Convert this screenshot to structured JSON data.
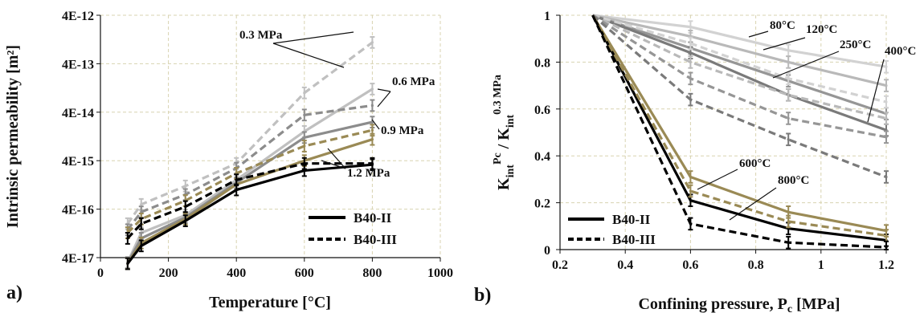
{
  "panels": [
    {
      "label": "a)",
      "xlabel": "Temperature [°C]",
      "ylabel": "Intrinsic permeability [m²]",
      "xticks": [
        "0",
        "200",
        "400",
        "600",
        "800",
        "1000"
      ],
      "yticks": [
        "4E-17",
        "4E-16",
        "4E-15",
        "4E-14",
        "4E-13",
        "4E-12"
      ],
      "annotations": [
        "0.3 MPa",
        "0.6 MPa",
        "0.9 MPa",
        "1.2 MPa"
      ],
      "legend": [
        "B40-II",
        "B40-III"
      ]
    },
    {
      "label": "b)",
      "xlabel": "Confining pressure, Pc [MPa]",
      "ylabel": "Kint^Pc / Kint^0.3 MPa",
      "xticks": [
        "0.2",
        "0.4",
        "0.6",
        "0.8",
        "1",
        "1.2"
      ],
      "yticks": [
        "0",
        "0.2",
        "0.4",
        "0.6",
        "0.8",
        "1"
      ],
      "annotations": [
        "80°C",
        "120°C",
        "250°C",
        "400°C",
        "600°C",
        "800°C"
      ],
      "legend": [
        "B40-II",
        "B40-III"
      ]
    }
  ],
  "chart_data": [
    {
      "type": "line",
      "title": "a)",
      "xlabel": "Temperature [°C]",
      "ylabel": "Intrinsic permeability [m²]",
      "xlim": [
        0,
        1000
      ],
      "ylim": [
        4e-17,
        4e-12
      ],
      "yscale": "log",
      "grid": true,
      "legend_position": "bottom-right",
      "colors": {
        "black": "#000000",
        "olive": "#9a8a55",
        "gray": "#8c8c8c",
        "lightgray": "#c0c0c0"
      },
      "series": [
        {
          "name": "B40-II 0.3 MPa",
          "style": "solid",
          "color": "#c0c0c0",
          "x": [
            80,
            120,
            250,
            400,
            600,
            800
          ],
          "y": [
            3.2e-17,
            1.3e-16,
            3e-16,
            1.6e-15,
            1.6e-14,
            1.2e-13
          ]
        },
        {
          "name": "B40-II 0.6 MPa",
          "style": "solid",
          "color": "#8c8c8c",
          "x": [
            80,
            120,
            250,
            400,
            600,
            800
          ],
          "y": [
            3.1e-17,
            1e-16,
            2.7e-16,
            1.4e-15,
            1.2e-14,
            2.5e-14
          ]
        },
        {
          "name": "B40-II 0.9 MPa",
          "style": "solid",
          "color": "#9a8a55",
          "x": [
            80,
            120,
            250,
            400,
            600,
            800
          ],
          "y": [
            3e-17,
            8e-17,
            2.5e-16,
            1.3e-15,
            4e-15,
            1.1e-14
          ]
        },
        {
          "name": "B40-II 1.2 MPa",
          "style": "solid",
          "color": "#000000",
          "x": [
            80,
            120,
            250,
            400,
            600,
            800
          ],
          "y": [
            3e-17,
            7e-17,
            2.3e-16,
            1e-15,
            2.5e-15,
            3.3e-15
          ]
        },
        {
          "name": "B40-III 0.3 MPa",
          "style": "dashed",
          "color": "#c0c0c0",
          "x": [
            80,
            120,
            250,
            400,
            600,
            800
          ],
          "y": [
            2e-16,
            5e-16,
            1.2e-15,
            3.5e-15,
            1e-13,
            1.1e-12
          ]
        },
        {
          "name": "B40-III 0.6 MPa",
          "style": "dashed",
          "color": "#8c8c8c",
          "x": [
            80,
            120,
            250,
            400,
            600,
            800
          ],
          "y": [
            1.5e-16,
            3.5e-16,
            8e-16,
            2.8e-15,
            3.5e-14,
            5.5e-14
          ]
        },
        {
          "name": "B40-III 0.9 MPa",
          "style": "dashed",
          "color": "#9a8a55",
          "x": [
            80,
            120,
            250,
            400,
            600,
            800
          ],
          "y": [
            1.3e-16,
            2.5e-16,
            6e-16,
            2.2e-15,
            8e-15,
            1.7e-14
          ]
        },
        {
          "name": "B40-III 1.2 MPa",
          "style": "dashed",
          "color": "#000000",
          "x": [
            80,
            120,
            250,
            400,
            600,
            800
          ],
          "y": [
            1e-16,
            2e-16,
            4.5e-16,
            1.6e-15,
            3.5e-15,
            3.5e-15
          ]
        }
      ]
    },
    {
      "type": "line",
      "title": "b)",
      "xlabel": "Confining pressure, Pc [MPa]",
      "ylabel": "Kint^Pc / Kint^0.3 MPa",
      "xlim": [
        0.2,
        1.2
      ],
      "ylim": [
        0,
        1
      ],
      "grid": true,
      "legend_position": "bottom-left",
      "colors": {
        "black": "#000000",
        "olive": "#9a8a55",
        "c80": "#d2d2d2",
        "c120": "#b9b9b9",
        "c250": "#969696",
        "c400": "#7a7a7a"
      },
      "series": [
        {
          "name": "B40-II 80°C",
          "style": "solid",
          "color": "#d2d2d2",
          "x": [
            0.3,
            0.6,
            0.9,
            1.2
          ],
          "y": [
            1.0,
            0.95,
            0.85,
            0.78
          ]
        },
        {
          "name": "B40-II 120°C",
          "style": "solid",
          "color": "#b9b9b9",
          "x": [
            0.3,
            0.6,
            0.9,
            1.2
          ],
          "y": [
            1.0,
            0.91,
            0.8,
            0.7
          ]
        },
        {
          "name": "B40-II 250°C",
          "style": "solid",
          "color": "#969696",
          "x": [
            0.3,
            0.6,
            0.9,
            1.2
          ],
          "y": [
            1.0,
            0.86,
            0.72,
            0.58
          ]
        },
        {
          "name": "B40-II 400°C",
          "style": "solid",
          "color": "#7a7a7a",
          "x": [
            0.3,
            0.6,
            0.9,
            1.2
          ],
          "y": [
            1.0,
            0.84,
            0.66,
            0.51
          ]
        },
        {
          "name": "B40-II 600°C",
          "style": "solid",
          "color": "#9a8a55",
          "x": [
            0.3,
            0.6,
            0.9,
            1.2
          ],
          "y": [
            1.0,
            0.31,
            0.16,
            0.08
          ]
        },
        {
          "name": "B40-II 800°C",
          "style": "solid",
          "color": "#000000",
          "x": [
            0.3,
            0.6,
            0.9,
            1.2
          ],
          "y": [
            1.0,
            0.21,
            0.09,
            0.04
          ]
        },
        {
          "name": "B40-III 80°C",
          "style": "dashed",
          "color": "#d2d2d2",
          "x": [
            0.3,
            0.6,
            0.9,
            1.2
          ],
          "y": [
            1.0,
            0.88,
            0.73,
            0.63
          ]
        },
        {
          "name": "B40-III 120°C",
          "style": "dashed",
          "color": "#b9b9b9",
          "x": [
            0.3,
            0.6,
            0.9,
            1.2
          ],
          "y": [
            1.0,
            0.8,
            0.66,
            0.56
          ]
        },
        {
          "name": "B40-III 250°C",
          "style": "dashed",
          "color": "#969696",
          "x": [
            0.3,
            0.6,
            0.9,
            1.2
          ],
          "y": [
            1.0,
            0.73,
            0.56,
            0.48
          ]
        },
        {
          "name": "B40-III 400°C",
          "style": "dashed",
          "color": "#7a7a7a",
          "x": [
            0.3,
            0.6,
            0.9,
            1.2
          ],
          "y": [
            1.0,
            0.64,
            0.47,
            0.31
          ]
        },
        {
          "name": "B40-III 600°C",
          "style": "dashed",
          "color": "#9a8a55",
          "x": [
            0.3,
            0.6,
            0.9,
            1.2
          ],
          "y": [
            1.0,
            0.25,
            0.12,
            0.06
          ]
        },
        {
          "name": "B40-III 800°C",
          "style": "dashed",
          "color": "#000000",
          "x": [
            0.3,
            0.6,
            0.9,
            1.2
          ],
          "y": [
            1.0,
            0.11,
            0.03,
            0.01
          ]
        }
      ]
    }
  ]
}
